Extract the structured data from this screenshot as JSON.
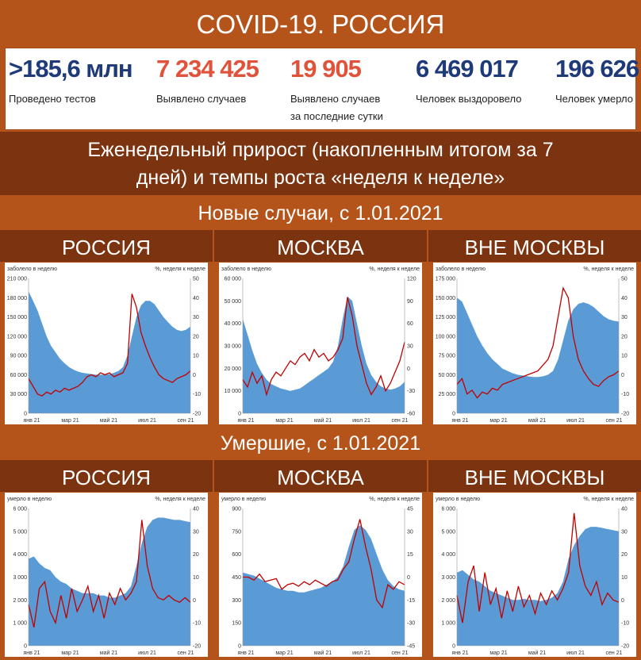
{
  "title": "COVID-19. РОССИЯ",
  "stats": [
    {
      "value": ">185,6 млн",
      "label": "Проведено тестов",
      "label2": "",
      "color": "#1f3a78"
    },
    {
      "value": "7 234 425",
      "label": "Выявлено случаев",
      "label2": "",
      "color": "#e0533a"
    },
    {
      "value": "19 905",
      "label": "Выявлено случаев",
      "label2": "за последние сутки",
      "color": "#e0533a"
    },
    {
      "value": "6 469 017",
      "label": "Человек выздоровело",
      "label2": "",
      "color": "#1f3a78"
    },
    {
      "value": "196 626",
      "label": "Человек умерло",
      "label2": "",
      "color": "#1f3a78"
    }
  ],
  "subtitle_line1": "Еженедельный прирост (накопленным итогом за 7",
  "subtitle_line2": "дней) и темпы роста «неделя к неделе»",
  "section_cases": "Новые случаи, с 1.01.2021",
  "section_deaths": "Умершие, с 1.01.2021",
  "region_labels": [
    "РОССИЯ",
    "МОСКВА",
    "ВНЕ МОСКВЫ",
    "РОССИЯ",
    "МОСКВА",
    "ВНЕ МОСКВЫ"
  ],
  "colors": {
    "area": "#5b9bd5",
    "line": "#c00000"
  },
  "chart_data": [
    {
      "type": "area",
      "region": "РОССИЯ",
      "section": "Новые случаи",
      "ylabel": "заболело в неделю",
      "y2label": "%, неделя к неделе",
      "xticks": [
        "янв 21",
        "мар 21",
        "май 21",
        "июл 21",
        "сен 21"
      ],
      "ylim": [
        0,
        210000
      ],
      "yticks": [
        0,
        30000,
        60000,
        90000,
        120000,
        150000,
        180000,
        210000
      ],
      "yticklabels": [
        "0",
        "30 000",
        "60 000",
        "90 000",
        "120 000",
        "150 000",
        "180 000",
        "210 000"
      ],
      "y2lim": [
        -20,
        50
      ],
      "y2ticks": [
        -20,
        -10,
        0,
        10,
        20,
        30,
        40,
        50
      ],
      "y2ticklabels": [
        "-20",
        "-10",
        "0",
        "10",
        "20",
        "30",
        "40",
        "50"
      ],
      "series": [
        {
          "name": "заболело в неделю",
          "kind": "area",
          "values": [
            190000,
            175000,
            160000,
            140000,
            120000,
            105000,
            95000,
            85000,
            78000,
            72000,
            68000,
            65000,
            63000,
            62000,
            61000,
            60000,
            60000,
            60000,
            61000,
            63000,
            66000,
            72000,
            90000,
            120000,
            150000,
            168000,
            175000,
            175000,
            170000,
            160000,
            150000,
            142000,
            135000,
            130000,
            128000,
            130000,
            135000
          ]
        },
        {
          "name": "%, неделя к неделе",
          "kind": "line",
          "values": [
            -2,
            -6,
            -10,
            -11,
            -9,
            -10,
            -8,
            -9,
            -7,
            -8,
            -7,
            -6,
            -4,
            -1,
            0,
            -1,
            1,
            0,
            1,
            -1,
            0,
            1,
            6,
            42,
            35,
            22,
            15,
            9,
            4,
            0,
            -2,
            -3,
            -4,
            -2,
            -1,
            0,
            2
          ]
        }
      ]
    },
    {
      "type": "area",
      "region": "МОСКВА",
      "section": "Новые случаи",
      "ylabel": "заболело в неделю",
      "y2label": "%, неделя к неделе",
      "xticks": [
        "янв 21",
        "мар 21",
        "май 21",
        "июл 21",
        "сен 21"
      ],
      "ylim": [
        0,
        60000
      ],
      "yticks": [
        0,
        10000,
        20000,
        30000,
        40000,
        50000,
        60000
      ],
      "yticklabels": [
        "0",
        "10 000",
        "20 000",
        "30 000",
        "40 000",
        "50 000",
        "60 000"
      ],
      "y2lim": [
        -60,
        120
      ],
      "y2ticks": [
        -60,
        -30,
        0,
        30,
        60,
        90,
        120
      ],
      "y2ticklabels": [
        "-60",
        "-30",
        "0",
        "30",
        "60",
        "90",
        "120"
      ],
      "series": [
        {
          "name": "заболело в неделю",
          "kind": "area",
          "values": [
            42000,
            35000,
            28000,
            22000,
            18000,
            15000,
            13000,
            12000,
            11000,
            10500,
            10000,
            10500,
            11000,
            12500,
            14000,
            15500,
            17000,
            18500,
            20000,
            23000,
            30000,
            42000,
            52000,
            50000,
            40000,
            30000,
            22000,
            17000,
            14000,
            12000,
            11000,
            10500,
            11000,
            12000,
            14000
          ]
        },
        {
          "name": "%, неделя к неделе",
          "kind": "line",
          "values": [
            -15,
            -25,
            -5,
            -20,
            -10,
            -35,
            -15,
            -5,
            -10,
            0,
            10,
            5,
            15,
            20,
            10,
            25,
            15,
            20,
            10,
            15,
            25,
            40,
            95,
            70,
            30,
            5,
            -20,
            -35,
            -25,
            -10,
            -30,
            -20,
            -5,
            10,
            35
          ]
        }
      ]
    },
    {
      "type": "area",
      "region": "ВНЕ МОСКВЫ",
      "section": "Новые случаи",
      "ylabel": "заболело в неделю",
      "y2label": "%, неделя к неделе",
      "xticks": [
        "янв 21",
        "мар 21",
        "май 21",
        "июл 21",
        "сен 21"
      ],
      "ylim": [
        0,
        175000
      ],
      "yticks": [
        0,
        25000,
        50000,
        75000,
        100000,
        125000,
        150000,
        175000
      ],
      "yticklabels": [
        "0",
        "25 000",
        "50 000",
        "75 000",
        "100 000",
        "125 000",
        "150 000",
        "175 000"
      ],
      "y2lim": [
        -20,
        50
      ],
      "y2ticks": [
        -20,
        -10,
        0,
        10,
        20,
        30,
        40,
        50
      ],
      "y2ticklabels": [
        "-20",
        "-10",
        "0",
        "10",
        "20",
        "30",
        "40",
        "50"
      ],
      "series": [
        {
          "name": "заболело в неделю",
          "kind": "area",
          "values": [
            150000,
            145000,
            130000,
            115000,
            100000,
            88000,
            78000,
            70000,
            64000,
            58000,
            55000,
            52000,
            50000,
            49000,
            48000,
            47000,
            47000,
            48000,
            50000,
            55000,
            70000,
            95000,
            120000,
            135000,
            142000,
            144000,
            142000,
            138000,
            132000,
            126000,
            122000,
            120000,
            119000
          ]
        },
        {
          "name": "%, неделя к неделе",
          "kind": "line",
          "values": [
            -5,
            -2,
            -10,
            -8,
            -12,
            -9,
            -10,
            -7,
            -8,
            -5,
            -4,
            -3,
            -2,
            -1,
            0,
            1,
            2,
            5,
            8,
            15,
            30,
            45,
            40,
            20,
            8,
            2,
            -2,
            -5,
            -6,
            -3,
            -1,
            0,
            2
          ]
        }
      ]
    },
    {
      "type": "area",
      "region": "РОССИЯ",
      "section": "Умершие",
      "ylabel": "умерло в неделю",
      "y2label": "%, неделя к неделе",
      "xticks": [
        "янв 21",
        "мар 21",
        "май 21",
        "июл 21",
        "сен 21"
      ],
      "ylim": [
        0,
        6000
      ],
      "yticks": [
        0,
        1000,
        2000,
        3000,
        4000,
        5000,
        6000
      ],
      "yticklabels": [
        "0",
        "1 000",
        "2 000",
        "3 000",
        "4 000",
        "5 000",
        "6 000"
      ],
      "y2lim": [
        -20,
        40
      ],
      "y2ticks": [
        -20,
        -10,
        0,
        10,
        20,
        30,
        40
      ],
      "y2ticklabels": [
        "-20",
        "-10",
        "0",
        "10",
        "20",
        "30",
        "40"
      ],
      "series": [
        {
          "name": "умерло в неделю",
          "kind": "area",
          "values": [
            3800,
            3900,
            3600,
            3400,
            3300,
            3000,
            2800,
            2700,
            2500,
            2400,
            2300,
            2300,
            2300,
            2200,
            2200,
            2100,
            2100,
            2200,
            2300,
            2600,
            3500,
            4500,
            5200,
            5500,
            5600,
            5600,
            5550,
            5500,
            5500,
            5450,
            5400
          ]
        },
        {
          "name": "%, неделя к неделе",
          "kind": "line",
          "values": [
            -2,
            -12,
            5,
            8,
            -5,
            -10,
            2,
            -8,
            5,
            -5,
            0,
            6,
            -5,
            2,
            -8,
            3,
            -2,
            5,
            0,
            3,
            8,
            35,
            15,
            5,
            1,
            0,
            2,
            0,
            -1,
            1,
            -1
          ]
        }
      ]
    },
    {
      "type": "area",
      "region": "МОСКВА",
      "section": "Умершие",
      "ylabel": "умерло в неделю",
      "y2label": "%, неделя к неделе",
      "xticks": [
        "янв 21",
        "мар 21",
        "май 21",
        "июл 21",
        "сен 21"
      ],
      "ylim": [
        0,
        900
      ],
      "yticks": [
        0,
        150,
        300,
        450,
        600,
        750,
        900
      ],
      "yticklabels": [
        "0",
        "150",
        "300",
        "450",
        "600",
        "750",
        "900"
      ],
      "y2lim": [
        -45,
        45
      ],
      "y2ticks": [
        -45,
        -30,
        -15,
        0,
        15,
        30,
        45
      ],
      "y2ticklabels": [
        "-45",
        "-30",
        "-15",
        "0",
        "15",
        "30",
        "45"
      ],
      "series": [
        {
          "name": "умерло в неделю",
          "kind": "area",
          "values": [
            480,
            470,
            460,
            440,
            420,
            400,
            380,
            370,
            360,
            360,
            350,
            350,
            360,
            370,
            380,
            400,
            420,
            450,
            520,
            650,
            760,
            790,
            760,
            700,
            600,
            500,
            430,
            390,
            370,
            360
          ]
        },
        {
          "name": "%, неделя к неделе",
          "kind": "line",
          "values": [
            0,
            0,
            -2,
            2,
            -3,
            -2,
            -1,
            -8,
            -5,
            -4,
            -6,
            -3,
            -5,
            -2,
            -4,
            -6,
            -3,
            -2,
            5,
            10,
            25,
            38,
            20,
            5,
            -15,
            -20,
            -5,
            -8,
            -3,
            -5
          ]
        }
      ]
    },
    {
      "type": "area",
      "region": "ВНЕ МОСКВЫ",
      "section": "Умершие",
      "ylabel": "умерло в неделю",
      "y2label": "%, неделя к неделе",
      "xticks": [
        "янв 21",
        "мар 21",
        "май 21",
        "июл 21",
        "сен 21"
      ],
      "ylim": [
        0,
        6000
      ],
      "yticks": [
        0,
        1000,
        2000,
        3000,
        4000,
        5000,
        6000
      ],
      "yticklabels": [
        "0",
        "1 000",
        "2 000",
        "3 000",
        "4 000",
        "5 000",
        "6 000"
      ],
      "y2lim": [
        -20,
        40
      ],
      "y2ticks": [
        -20,
        -10,
        0,
        10,
        20,
        30,
        40
      ],
      "y2ticklabels": [
        "-20",
        "-10",
        "0",
        "10",
        "20",
        "30",
        "40"
      ],
      "series": [
        {
          "name": "умерло в неделю",
          "kind": "area",
          "values": [
            3200,
            3300,
            3100,
            2900,
            2800,
            2600,
            2400,
            2300,
            2200,
            2100,
            2000,
            2000,
            2050,
            2000,
            2000,
            1950,
            2000,
            2100,
            2300,
            2800,
            3800,
            4400,
            4800,
            5100,
            5200,
            5200,
            5150,
            5100,
            5050,
            5000
          ]
        },
        {
          "name": "%, неделя к неделе",
          "kind": "line",
          "values": [
            2,
            -10,
            8,
            15,
            -5,
            12,
            -2,
            5,
            -8,
            4,
            -5,
            6,
            -3,
            2,
            -6,
            3,
            -2,
            4,
            0,
            5,
            12,
            38,
            15,
            6,
            2,
            8,
            -2,
            3,
            0,
            -1
          ]
        }
      ]
    }
  ]
}
